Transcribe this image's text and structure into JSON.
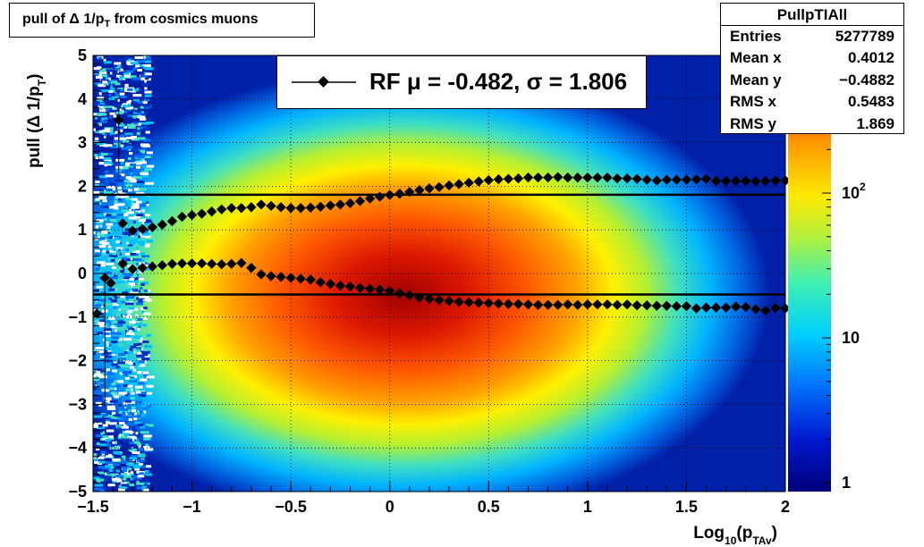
{
  "title": "pull of Δ 1/p_T from cosmics muons",
  "stats": {
    "name": "PullpTIAll",
    "rows": [
      {
        "label": "Entries",
        "value": "5277789"
      },
      {
        "label": "Mean x",
        "value": "0.4012"
      },
      {
        "label": "Mean y",
        "value": "−0.4882"
      },
      {
        "label": "RMS x",
        "value": "0.5483"
      },
      {
        "label": "RMS y",
        "value": "1.869"
      }
    ]
  },
  "legend": {
    "text": "RF μ = -0.482, σ =   1.806"
  },
  "colors": {
    "marker": "#000000",
    "line": "#000000",
    "frame": "#000000"
  },
  "chart_data": {
    "type": "heatmap",
    "title": "pull of Δ 1/p_T from cosmics muons",
    "xlabel": "Log10(pTAv)",
    "ylabel": "pull (Δ 1/pT)",
    "xlim": [
      -1.5,
      2
    ],
    "ylim": [
      -5,
      5
    ],
    "x_ticks": [
      "−1.5",
      "−1",
      "−0.5",
      "0",
      "0.5",
      "1",
      "1.5",
      "2"
    ],
    "y_ticks": [
      "5",
      "4",
      "3",
      "2",
      "1",
      "0",
      "−1",
      "−2",
      "−3",
      "−4",
      "−5"
    ],
    "colorbar": {
      "scale": "log",
      "tick_labels": [
        "1",
        "10",
        "10^2"
      ]
    },
    "grid": true,
    "reference_lines": [
      1.806,
      -0.482
    ],
    "series": [
      {
        "name": "upper",
        "x": [
          -1.35,
          -1.3,
          -1.25,
          -1.2,
          -1.15,
          -1.1,
          -1.05,
          -1,
          -0.95,
          -0.9,
          -0.85,
          -0.8,
          -0.75,
          -0.7,
          -0.65,
          -0.6,
          -0.55,
          -0.5,
          -0.45,
          -0.4,
          -0.35,
          -0.3,
          -0.25,
          -0.2,
          -0.15,
          -0.1,
          -0.05,
          0,
          0.05,
          0.1,
          0.15,
          0.2,
          0.25,
          0.3,
          0.35,
          0.4,
          0.45,
          0.5,
          0.55,
          0.6,
          0.65,
          0.7,
          0.75,
          0.8,
          0.85,
          0.9,
          0.95,
          1,
          1.05,
          1.1,
          1.15,
          1.2,
          1.25,
          1.3,
          1.35,
          1.4,
          1.45,
          1.5,
          1.55,
          1.6,
          1.65,
          1.7,
          1.75,
          1.8,
          1.85,
          1.9,
          1.95,
          2
        ],
        "y": [
          1.15,
          0.98,
          1.02,
          1.06,
          1.12,
          1.2,
          1.3,
          1.34,
          1.37,
          1.42,
          1.47,
          1.5,
          1.5,
          1.52,
          1.58,
          1.55,
          1.52,
          1.5,
          1.5,
          1.51,
          1.53,
          1.56,
          1.58,
          1.61,
          1.66,
          1.72,
          1.76,
          1.8,
          1.83,
          1.87,
          1.91,
          1.95,
          1.98,
          2.02,
          2.05,
          2.08,
          2.11,
          2.14,
          2.16,
          2.17,
          2.18,
          2.2,
          2.2,
          2.2,
          2.21,
          2.2,
          2.2,
          2.2,
          2.2,
          2.2,
          2.18,
          2.18,
          2.17,
          2.15,
          2.13,
          2.15,
          2.15,
          2.15,
          2.16,
          2.17,
          2.12,
          2.12,
          2.12,
          2.12,
          2.11,
          2.12,
          2.13,
          2.13
        ]
      },
      {
        "name": "lower",
        "x": [
          -1.35,
          -1.3,
          -1.25,
          -1.2,
          -1.15,
          -1.1,
          -1.05,
          -1,
          -0.95,
          -0.9,
          -0.85,
          -0.8,
          -0.75,
          -0.7,
          -0.65,
          -0.6,
          -0.55,
          -0.5,
          -0.45,
          -0.4,
          -0.35,
          -0.3,
          -0.25,
          -0.2,
          -0.15,
          -0.1,
          -0.05,
          0,
          0.05,
          0.1,
          0.15,
          0.2,
          0.25,
          0.3,
          0.35,
          0.4,
          0.45,
          0.5,
          0.55,
          0.6,
          0.65,
          0.7,
          0.75,
          0.8,
          0.85,
          0.9,
          0.95,
          1,
          1.05,
          1.1,
          1.15,
          1.2,
          1.25,
          1.3,
          1.35,
          1.4,
          1.45,
          1.5,
          1.55,
          1.6,
          1.65,
          1.7,
          1.75,
          1.8,
          1.85,
          1.9,
          1.95,
          2
        ],
        "y": [
          0.22,
          0.1,
          0.13,
          0.16,
          0.19,
          0.22,
          0.23,
          0.23,
          0.23,
          0.22,
          0.21,
          0.22,
          0.24,
          0.13,
          -0.02,
          -0.06,
          -0.08,
          -0.1,
          -0.12,
          -0.14,
          -0.2,
          -0.24,
          -0.28,
          -0.3,
          -0.33,
          -0.35,
          -0.37,
          -0.4,
          -0.45,
          -0.5,
          -0.55,
          -0.58,
          -0.61,
          -0.63,
          -0.65,
          -0.66,
          -0.67,
          -0.68,
          -0.69,
          -0.7,
          -0.7,
          -0.71,
          -0.72,
          -0.72,
          -0.72,
          -0.71,
          -0.72,
          -0.71,
          -0.71,
          -0.71,
          -0.72,
          -0.71,
          -0.73,
          -0.73,
          -0.74,
          -0.74,
          -0.75,
          -0.75,
          -0.8,
          -0.78,
          -0.78,
          -0.78,
          -0.76,
          -0.77,
          -0.82,
          -0.85,
          -0.79,
          -0.8
        ]
      },
      {
        "name": "low-pt points",
        "x": [
          -1.48,
          -1.44,
          -1.41,
          -1.37
        ],
        "y": [
          -0.92,
          -0.1,
          -0.22,
          3.52
        ]
      }
    ]
  }
}
